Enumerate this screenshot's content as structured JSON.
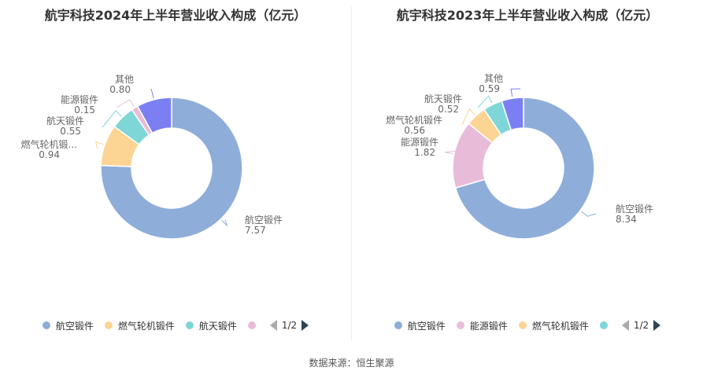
{
  "colors": {
    "航空锻件": "#8fadd9",
    "燃气轮机锻件": "#fcd494",
    "航天锻件": "#7fd6d7",
    "能源锻件": "#e8bcd8",
    "其他": "#7b7ff2"
  },
  "charts": [
    {
      "title": "航宇科技2024年上半年营业收入构成（亿元）",
      "chart_data": {
        "type": "pie",
        "donut": true,
        "title": "航宇科技2024年上半年营业收入构成（亿元）",
        "slices": [
          {
            "name": "航空锻件",
            "value": 7.57,
            "value_label": "7.57",
            "name_label": "航空锻件"
          },
          {
            "name": "燃气轮机锻件",
            "value": 0.94,
            "value_label": "0.94",
            "name_label": "燃气轮机锻..."
          },
          {
            "name": "航天锻件",
            "value": 0.55,
            "value_label": "0.55",
            "name_label": "航天锻件"
          },
          {
            "name": "能源锻件",
            "value": 0.15,
            "value_label": "0.15",
            "name_label": "能源锻件"
          },
          {
            "name": "其他",
            "value": 0.8,
            "value_label": "0.80",
            "name_label": "其他"
          }
        ],
        "legend_placement": "bottom"
      },
      "legend": {
        "items": [
          "航空锻件",
          "燃气轮机锻件",
          "航天锻件",
          ""
        ],
        "item_keys": [
          "航空锻件",
          "燃气轮机锻件",
          "航天锻件",
          "能源锻件"
        ],
        "page": "1/2"
      }
    },
    {
      "title": "航宇科技2023年上半年营业收入构成（亿元）",
      "chart_data": {
        "type": "pie",
        "donut": true,
        "title": "航宇科技2023年上半年营业收入构成（亿元）",
        "slices": [
          {
            "name": "航空锻件",
            "value": 8.34,
            "value_label": "8.34",
            "name_label": "航空锻件"
          },
          {
            "name": "能源锻件",
            "value": 1.82,
            "value_label": "1.82",
            "name_label": "能源锻件"
          },
          {
            "name": "燃气轮机锻件",
            "value": 0.56,
            "value_label": "0.56",
            "name_label": "燃气轮机锻件"
          },
          {
            "name": "航天锻件",
            "value": 0.52,
            "value_label": "0.52",
            "name_label": "航天锻件"
          },
          {
            "name": "其他",
            "value": 0.59,
            "value_label": "0.59",
            "name_label": "其他"
          }
        ],
        "legend_placement": "bottom"
      },
      "legend": {
        "items": [
          "航空锻件",
          "能源锻件",
          "燃气轮机锻件",
          ""
        ],
        "item_keys": [
          "航空锻件",
          "能源锻件",
          "燃气轮机锻件",
          "航天锻件"
        ],
        "page": "1/2"
      }
    }
  ],
  "source": "数据来源：恒生聚源"
}
